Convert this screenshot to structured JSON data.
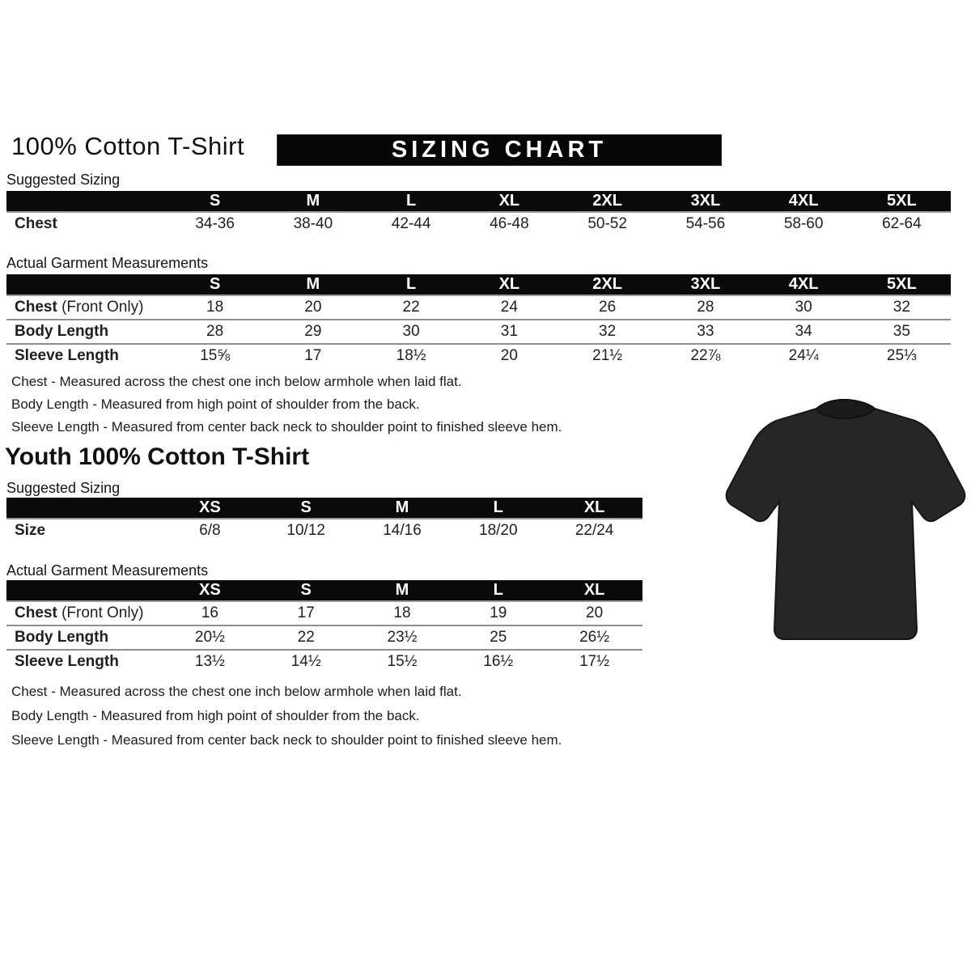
{
  "header": {
    "title": "100% Cotton T-Shirt",
    "banner": "SIZING CHART"
  },
  "labels": {
    "suggested": "Suggested Sizing",
    "actual": "Actual Garment Measurements"
  },
  "adult": {
    "suggested_table": {
      "columns": [
        "S",
        "M",
        "L",
        "XL",
        "2XL",
        "3XL",
        "4XL",
        "5XL"
      ],
      "rows": [
        {
          "label": "Chest",
          "suffix": "",
          "values": [
            "34-36",
            "38-40",
            "42-44",
            "46-48",
            "50-52",
            "54-56",
            "58-60",
            "62-64"
          ]
        }
      ]
    },
    "actual_table": {
      "columns": [
        "S",
        "M",
        "L",
        "XL",
        "2XL",
        "3XL",
        "4XL",
        "5XL"
      ],
      "rows": [
        {
          "label": "Chest",
          "suffix": "(Front Only)",
          "values": [
            "18",
            "20",
            "22",
            "24",
            "26",
            "28",
            "30",
            "32"
          ]
        },
        {
          "label": "Body Length",
          "suffix": "",
          "values": [
            "28",
            "29",
            "30",
            "31",
            "32",
            "33",
            "34",
            "35"
          ]
        },
        {
          "label": "Sleeve Length",
          "suffix": "",
          "values": [
            "15⅝",
            "17",
            "18½",
            "20",
            "21½",
            "22⅞",
            "24¼",
            "25⅓"
          ]
        }
      ]
    },
    "notes": [
      "Chest - Measured across the chest one inch below armhole when laid flat.",
      "Body Length - Measured from high point of shoulder from the back.",
      "Sleeve Length - Measured from center back neck to shoulder point to finished sleeve hem."
    ]
  },
  "youth": {
    "title": "Youth 100% Cotton T-Shirt",
    "suggested_table": {
      "columns": [
        "XS",
        "S",
        "M",
        "L",
        "XL"
      ],
      "rows": [
        {
          "label": "Size",
          "suffix": "",
          "values": [
            "6/8",
            "10/12",
            "14/16",
            "18/20",
            "22/24"
          ]
        }
      ]
    },
    "actual_table": {
      "columns": [
        "XS",
        "S",
        "M",
        "L",
        "XL"
      ],
      "rows": [
        {
          "label": "Chest",
          "suffix": "(Front Only)",
          "values": [
            "16",
            "17",
            "18",
            "19",
            "20"
          ]
        },
        {
          "label": "Body Length",
          "suffix": "",
          "values": [
            "20½",
            "22",
            "23½",
            "25",
            "26½"
          ]
        },
        {
          "label": "Sleeve Length",
          "suffix": "",
          "values": [
            "13½",
            "14½",
            "15½",
            "16½",
            "17½"
          ]
        }
      ]
    },
    "notes": [
      "Chest - Measured across the chest one inch below armhole when laid flat.",
      "Body Length - Measured from high point of shoulder from the back.",
      "Sleeve Length - Measured from center back neck to shoulder point to finished sleeve hem."
    ]
  },
  "tshirt": {
    "description": "black short-sleeve t-shirt photo",
    "color": "#262626",
    "outline": "#161616"
  }
}
